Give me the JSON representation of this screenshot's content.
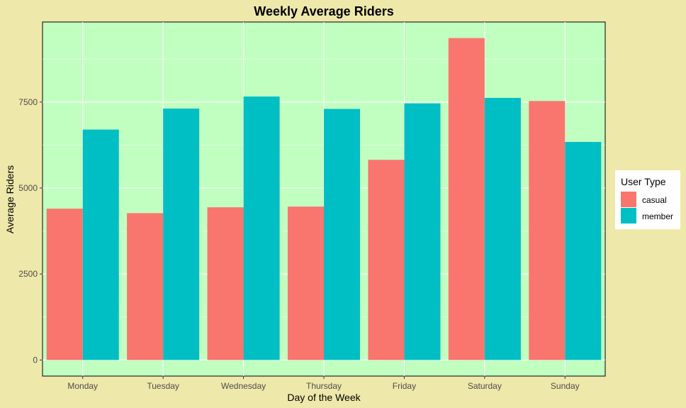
{
  "chart_data": {
    "type": "bar",
    "title": "Weekly Average Riders",
    "xlabel": "Day of the Week",
    "ylabel": "Average Riders",
    "categories": [
      "Monday",
      "Tuesday",
      "Wednesday",
      "Thursday",
      "Friday",
      "Saturday",
      "Sunday"
    ],
    "series": [
      {
        "name": "casual",
        "color": "#F8766D",
        "values": [
          4400,
          4270,
          4440,
          4460,
          5820,
          9360,
          7530
        ]
      },
      {
        "name": "member",
        "color": "#00BFC4",
        "values": [
          6700,
          7310,
          7660,
          7300,
          7460,
          7620,
          6340
        ]
      }
    ],
    "yticks": [
      0,
      2500,
      5000,
      7500
    ],
    "ytick_labels": [
      "0",
      "2500",
      "5000",
      "7500"
    ],
    "ylim": [
      -467,
      9827
    ],
    "grid": true,
    "legend": {
      "title": "User Type",
      "position": "right"
    },
    "colors": {
      "page_background": "#EEE8AA",
      "panel_background": "#C1FFC1",
      "gridline": "#FFFFFF"
    }
  }
}
